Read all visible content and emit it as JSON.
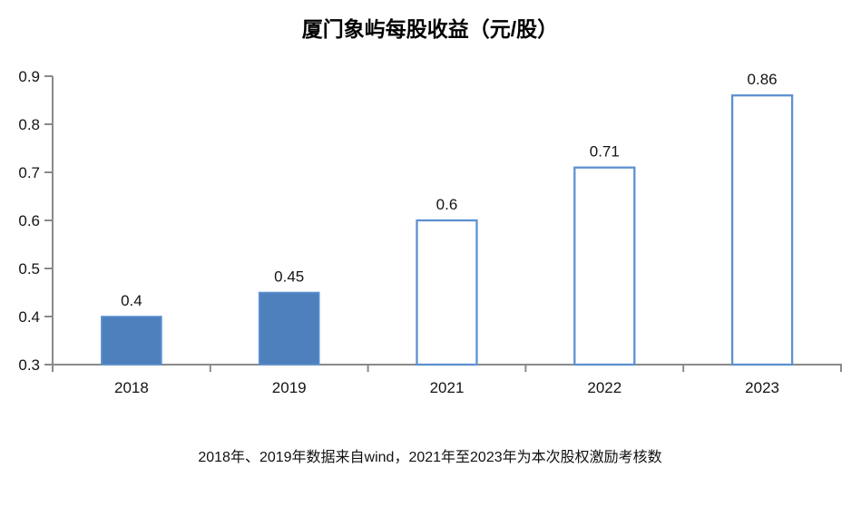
{
  "chart_data": {
    "type": "bar",
    "title": "厦门象屿每股收益（元/股）",
    "categories": [
      "2018",
      "2019",
      "2021",
      "2022",
      "2023"
    ],
    "values": [
      0.4,
      0.45,
      0.6,
      0.71,
      0.86
    ],
    "data_labels": [
      "0.4",
      "0.45",
      "0.6",
      "0.71",
      "0.86"
    ],
    "bar_styles": [
      "filled",
      "filled",
      "outline",
      "outline",
      "outline"
    ],
    "xlabel": "",
    "ylabel": "",
    "ylim": [
      0.3,
      0.9
    ],
    "yticks": [
      0.3,
      0.4,
      0.5,
      0.6,
      0.7,
      0.8,
      0.9
    ],
    "ytick_labels": [
      "0.3",
      "0.4",
      "0.5",
      "0.6",
      "0.7",
      "0.8",
      "0.9"
    ],
    "grid": false,
    "legend": "none",
    "footnote": "2018年、2019年数据来自wind，2021年至2023年为本次股权激励考核数",
    "colors": {
      "bar_fill": "#4d80bc",
      "bar_border": "#5e91d0",
      "outline_bar_fill": "#ffffff",
      "axis": "#8a8a8a",
      "text": "#141414"
    }
  }
}
